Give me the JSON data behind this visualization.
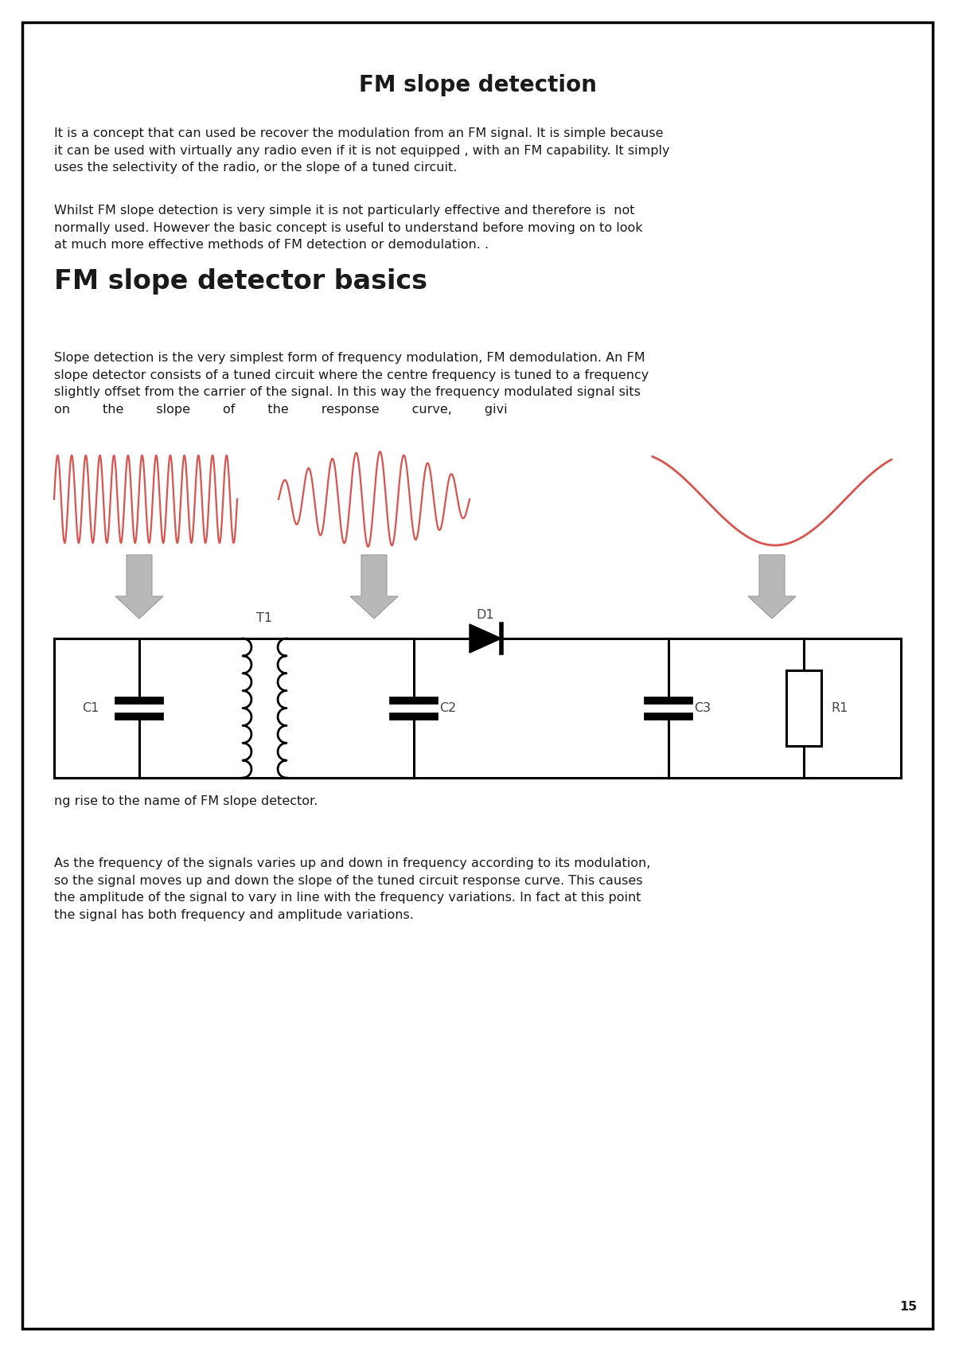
{
  "title": "FM slope detection",
  "subtitle": "FM slope detector basics",
  "para1_line1": "It is a concept that can used be recover the modulation from an FM signal. It is simple because",
  "para1_line2": "it can be used with virtually any radio even if it is not equipped , with an FM capability. It simply",
  "para1_line3": "uses the selectivity of the radio, or the slope of a tuned circuit.",
  "para2_line1": "Whilst FM slope detection is very simple it is not particularly effective and therefore is  not",
  "para2_line2": "normally used. However the basic concept is useful to understand before moving on to look",
  "para2_line3": "at much more effective methods of FM detection or demodulation. .",
  "para3_line1": "Slope detection is the very simplest form of frequency modulation, FM demodulation. An FM",
  "para3_line2": "slope detector consists of a tuned circuit where the centre frequency is tuned to a frequency",
  "para3_line3": "slightly offset from the carrier of the signal. In this way the frequency modulated signal sits",
  "para3_line4": "on        the        slope        of        the        response        curve,        givi",
  "para4": "ng rise to the name of FM slope detector.",
  "para5_line1": "As the frequency of the signals varies up and down in frequency according to its modulation,",
  "para5_line2": "so the signal moves up and down the slope of the tuned circuit response curve. This causes",
  "para5_line3": "the amplitude of the signal to vary in line with the frequency variations. In fact at this point",
  "para5_line4": "the signal has both frequency and amplitude variations.",
  "page_number": "15",
  "wave_color": "#d9534f",
  "arrow_facecolor": "#b8b8b8",
  "arrow_edgecolor": "#999999",
  "circuit_color": "#000000",
  "bg_color": "#ffffff",
  "border_color": "#000000",
  "text_color": "#1a1a1a",
  "label_color": "#444444",
  "title_fontsize": 20,
  "heading_fontsize": 24,
  "body_fontsize": 11.5
}
